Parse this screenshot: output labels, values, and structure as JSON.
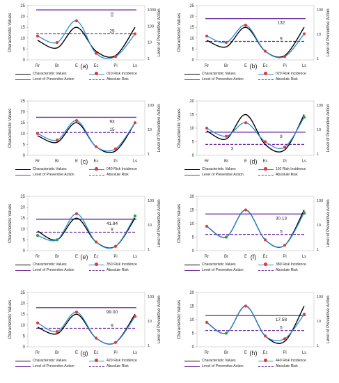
{
  "chart_data": [
    {
      "type": "line",
      "subplot_label": "(a)",
      "categories": [
        "Rr",
        "Br",
        "E",
        "Ec",
        "Pi",
        "Ls"
      ],
      "ylabel": "Characteristic Values",
      "y2label": "Level of Preventive Action",
      "ylim": [
        0,
        25
      ],
      "yticks": [
        0,
        5,
        10,
        15,
        20,
        25
      ],
      "y2_ticks": [
        "1",
        "10",
        "100",
        "1000"
      ],
      "series": [
        {
          "name": "Characteristic Values",
          "values": [
            9,
            5.5,
            15,
            4,
            2,
            15
          ]
        },
        {
          "name": "010 Risk Incidence",
          "values": [
            11,
            8,
            18,
            3,
            1.5,
            12
          ]
        }
      ],
      "preventive_level": 23,
      "absolute_risk": 12,
      "preventive_label": "[]",
      "absolute_label": "25",
      "point_colors": [
        "red",
        "red",
        "red",
        "red",
        "red",
        "red"
      ],
      "legend": {
        "char": "Characteristic Values",
        "risk": "010 Risk Incidence",
        "prev": "Level of Preventive Action",
        "abs": "Absolute Risk"
      }
    },
    {
      "type": "line",
      "subplot_label": "(b)",
      "categories": [
        "Rr",
        "Br",
        "E",
        "Ec",
        "Pi",
        "Ls"
      ],
      "ylabel": "Characteristic Values",
      "y2label": "Level of Preventive Action",
      "ylim": [
        0,
        25
      ],
      "yticks": [
        0,
        5,
        10,
        15,
        20,
        25
      ],
      "y2_ticks": [
        "1",
        "10",
        "100"
      ],
      "series": [
        {
          "name": "Characteristic Values",
          "values": [
            9,
            6,
            15,
            4,
            2,
            15
          ]
        },
        {
          "name": "020 Risk Incidence",
          "values": [
            11,
            8,
            16,
            4,
            1.5,
            12
          ]
        }
      ],
      "preventive_level": 19,
      "absolute_risk": 8.5,
      "preventive_label": "132",
      "absolute_label": "9",
      "point_colors": [
        "red",
        "red",
        "red",
        "red",
        "red",
        "red"
      ],
      "legend": {
        "char": "Characteristic Values",
        "risk": "020 Risk Incidence",
        "prev": "Level of Preventive Action",
        "abs": "Absolute Risk"
      }
    },
    {
      "type": "line",
      "subplot_label": "(c)",
      "categories": [
        "Rr",
        "Br",
        "E",
        "Ec",
        "Pi",
        "Ls"
      ],
      "ylabel": "Characteristic Values",
      "y2label": "Level of Preventive Action",
      "ylim": [
        0,
        25
      ],
      "yticks": [
        0,
        5,
        10,
        15,
        20,
        25
      ],
      "y2_ticks": [
        "1",
        "10",
        "100"
      ],
      "series": [
        {
          "name": "Characteristic Values",
          "values": [
            9,
            6,
            15,
            4,
            2,
            15
          ]
        },
        {
          "name": "040 Risk Incidence",
          "values": [
            10,
            7,
            16,
            4,
            3,
            15
          ]
        }
      ],
      "preventive_level": 17.5,
      "absolute_risk": 10.5,
      "preventive_label": "93",
      "absolute_label": "15",
      "point_colors": [
        "red",
        "red",
        "red",
        "red",
        "red",
        "red"
      ],
      "legend": {
        "char": "Characteristic Values",
        "risk": "040 Risk Incidence",
        "prev": "Level of Preventive Action",
        "abs": "Absolute Risk"
      }
    },
    {
      "type": "line",
      "subplot_label": "(d)",
      "categories": [
        "Rr",
        "Br",
        "E",
        "Ec",
        "Pi",
        "Ls"
      ],
      "ylabel": "Characteristic Values",
      "y2label": "Level of Preventive Action",
      "ylim": [
        0,
        20
      ],
      "yticks": [
        0,
        5,
        10,
        15,
        20
      ],
      "y2_ticks": [
        "1",
        "10",
        "100"
      ],
      "series": [
        {
          "name": "Characteristic Values",
          "values": [
            9,
            6,
            15,
            4,
            2,
            15
          ]
        },
        {
          "name": "110 Risk Incidence",
          "values": [
            10,
            7,
            12,
            5,
            3,
            14
          ]
        }
      ],
      "preventive_level": 8.5,
      "absolute_risk": 4,
      "preventive_label": "9",
      "absolute_label": "3",
      "point_colors": [
        "red",
        "red",
        "red",
        "red",
        "red",
        "green"
      ],
      "legend": {
        "char": "Characteristic Values",
        "risk": "110 Risk Incidence",
        "prev": "Level of Preventive Action",
        "abs": "Absolute Risk"
      }
    },
    {
      "type": "line",
      "subplot_label": "(e)",
      "categories": [
        "Rr",
        "Br",
        "E",
        "Ec",
        "Pi",
        "Ls"
      ],
      "ylabel": "Characteristic Values",
      "y2label": "Level of Preventive Action",
      "ylim": [
        0,
        25
      ],
      "yticks": [
        0,
        5,
        10,
        15,
        20,
        25
      ],
      "y2_ticks": [
        "1",
        "10",
        "100"
      ],
      "series": [
        {
          "name": "Characteristic Values",
          "values": [
            9,
            5,
            15,
            4,
            2,
            15
          ]
        },
        {
          "name": "350 Risk Incidence",
          "values": [
            7,
            5,
            17,
            4,
            2,
            16
          ]
        }
      ],
      "preventive_level": 14.5,
      "absolute_risk": 8.5,
      "preventive_label": "41.84",
      "absolute_label": "9",
      "point_colors": [
        "green",
        "green",
        "red",
        "red",
        "red",
        "green"
      ],
      "legend": {
        "char": "Characteristic Values",
        "risk": "350 Risk Incidence",
        "prev": "Level of Preventive Action",
        "abs": "Absolute Risk"
      }
    },
    {
      "type": "line",
      "subplot_label": "(f)",
      "categories": [
        "Rr",
        "Br",
        "E",
        "Ec",
        "Pi",
        "Ls"
      ],
      "ylabel": "Characteristic Values",
      "y2label": "Level of Preventive Action",
      "ylim": [
        0,
        20
      ],
      "yticks": [
        0,
        5,
        10,
        15,
        20
      ],
      "y2_ticks": [
        "1",
        "10",
        "100"
      ],
      "series": [
        {
          "name": "Characteristic Values",
          "values": [
            9,
            5,
            15,
            4,
            2,
            15
          ]
        },
        {
          "name": "380 Risk Incidence",
          "values": [
            9,
            5,
            15,
            4,
            2,
            14
          ]
        }
      ],
      "preventive_level": 13.5,
      "absolute_risk": 6,
      "preventive_label": "30.13",
      "absolute_label": "5",
      "point_colors": [
        "red",
        "green",
        "red",
        "red",
        "red",
        "green"
      ],
      "legend": {
        "char": "Characteristic Values",
        "risk": "380 Risk Incidence",
        "prev": "Level of Preventive Action",
        "abs": "Absolute Risk"
      }
    },
    {
      "type": "line",
      "subplot_label": "(g)",
      "categories": [
        "Rr",
        "Br",
        "E",
        "Ec",
        "Pi",
        "Ls"
      ],
      "ylabel": "Characteristic Values",
      "y2label": "Level of Preventive Action",
      "ylim": [
        0,
        25
      ],
      "yticks": [
        0,
        5,
        10,
        15,
        20,
        25
      ],
      "y2_ticks": [
        "1",
        "10",
        "100"
      ],
      "series": [
        {
          "name": "Characteristic Values",
          "values": [
            9,
            6,
            15,
            4,
            2,
            15
          ]
        },
        {
          "name": "420 Risk Incidence",
          "values": [
            11,
            7,
            16,
            4,
            2,
            14
          ]
        }
      ],
      "preventive_level": 18,
      "absolute_risk": 8.5,
      "preventive_label": "99.00",
      "absolute_label": "9",
      "point_colors": [
        "red",
        "red",
        "red",
        "red",
        "red",
        "red"
      ],
      "legend": {
        "char": "Characteristic Values",
        "risk": "420 Risk Incidence",
        "prev": "Level of Preventive Action",
        "abs": "Absolute Risk"
      }
    },
    {
      "type": "line",
      "subplot_label": "(h)",
      "categories": [
        "Rr",
        "Br",
        "E",
        "Ec",
        "Pi",
        "Ls"
      ],
      "ylabel": "Characteristic Values",
      "y2label": "Level of Preventive Action",
      "ylim": [
        0,
        20
      ],
      "yticks": [
        0,
        5,
        10,
        15,
        20
      ],
      "y2_ticks": [
        "1",
        "10",
        "100"
      ],
      "series": [
        {
          "name": "Characteristic Values",
          "values": [
            9,
            5,
            15,
            4,
            2,
            15
          ]
        },
        {
          "name": "440 Risk Incidence",
          "values": [
            9,
            5,
            15,
            4,
            3,
            12
          ]
        }
      ],
      "preventive_level": 11.5,
      "absolute_risk": 6,
      "preventive_label": "17.58",
      "absolute_label": "5",
      "point_colors": [
        "red",
        "green",
        "red",
        "red",
        "red",
        "red"
      ],
      "legend": {
        "char": "Characteristic Values",
        "risk": "440 Risk Incidence",
        "prev": "Level of Preventive Action",
        "abs": "Absolute Risk"
      }
    }
  ],
  "colors": {
    "characteristic": "#000000",
    "risk_line": "#2e8bd6",
    "preventive": "#7030a0",
    "absolute": "#7030a0",
    "point_red": "#e53935",
    "point_green": "#2e9e3e"
  }
}
